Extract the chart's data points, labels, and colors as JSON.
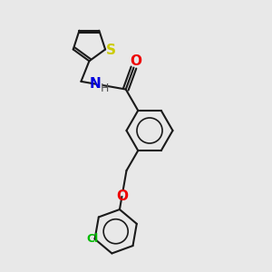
{
  "bg_color": "#e8e8e8",
  "bond_color": "#1a1a1a",
  "bond_width": 1.5,
  "O_color": "#ee0000",
  "N_color": "#0000dd",
  "S_color": "#cccc00",
  "Cl_color": "#00bb00",
  "H_color": "#555555",
  "font_size": 9,
  "figsize": [
    3.0,
    3.0
  ],
  "dpi": 100,
  "xlim": [
    0,
    10
  ],
  "ylim": [
    0,
    10
  ]
}
